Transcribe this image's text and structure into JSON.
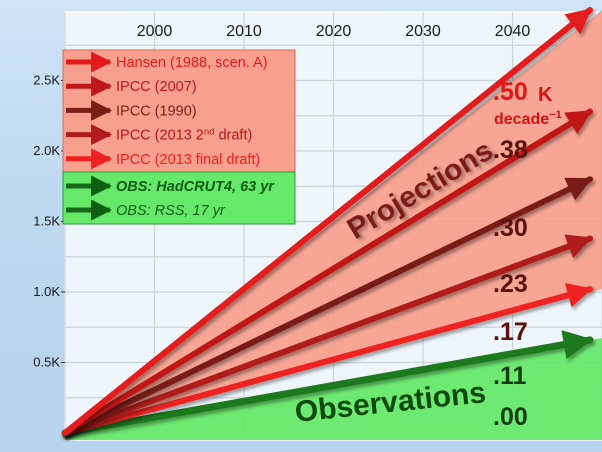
{
  "chart_data": {
    "type": "line",
    "x_ticks": [
      "2000",
      "2010",
      "2020",
      "2030",
      "2040"
    ],
    "y_ticks": [
      "0.5K",
      "1.0K",
      "1.5K",
      "2.0K",
      "2.5K"
    ],
    "series": [
      {
        "name": "Hansen (1988, scen. A)",
        "rate_label": ".50",
        "color": "#e41a1a",
        "x": [
          1990,
          2050
        ],
        "y": [
          0.0,
          3.0
        ]
      },
      {
        "name": "IPCC (2007)",
        "rate_label": ".38",
        "color": "#c01818",
        "x": [
          1990,
          2050
        ],
        "y": [
          0.0,
          2.28
        ]
      },
      {
        "name": "IPCC (1990)",
        "rate_label": ".30",
        "color": "#7a1e16",
        "x": [
          1990,
          2050
        ],
        "y": [
          0.0,
          1.8
        ]
      },
      {
        "name": "IPCC (2013 2nd draft)",
        "rate_label": ".23",
        "color": "#b01a1a",
        "x": [
          1990,
          2050
        ],
        "y": [
          0.0,
          1.38
        ]
      },
      {
        "name": "IPCC (2013 final draft)",
        "rate_label": ".17",
        "color": "#ef2020",
        "x": [
          1990,
          2050
        ],
        "y": [
          0.0,
          1.02
        ]
      },
      {
        "name": "OBS: HadCRUT4, 63 yr",
        "rate_label": ".11",
        "color": "#1e7a1e",
        "x": [
          1990,
          2050
        ],
        "y": [
          0.0,
          0.66
        ]
      },
      {
        "name": "OBS: RSS, 17 yr",
        "rate_label": ".00",
        "color": "#1e7a1e",
        "x": [
          1990,
          2050
        ],
        "y": [
          0.0,
          0.0
        ]
      }
    ],
    "unit_label": "K",
    "unit_sub": "decade",
    "unit_exp": "−1",
    "projections_label": "Projections",
    "observations_label": "Observations"
  },
  "legend_projections": [
    {
      "text": "Hansen (1988, scen. A)",
      "sup": "",
      "tail": "",
      "color": "#e41a1a"
    },
    {
      "text": "IPCC (2007)",
      "sup": "",
      "tail": "",
      "color": "#c01818"
    },
    {
      "text": "IPCC (1990)",
      "sup": "",
      "tail": "",
      "color": "#7a1e16"
    },
    {
      "text": "IPCC (2013 2",
      "sup": "nd",
      "tail": " draft)",
      "color": "#b01a1a"
    },
    {
      "text": "IPCC (2013 final draft)",
      "sup": "",
      "tail": "",
      "color": "#ef2020"
    }
  ],
  "legend_observations": [
    {
      "text": "OBS: HadCRUT4, 63 yr",
      "bold": true,
      "color": "#1e7a1e"
    },
    {
      "text": "OBS: RSS, 17 yr",
      "bold": false,
      "color": "#1e7a1e"
    }
  ]
}
